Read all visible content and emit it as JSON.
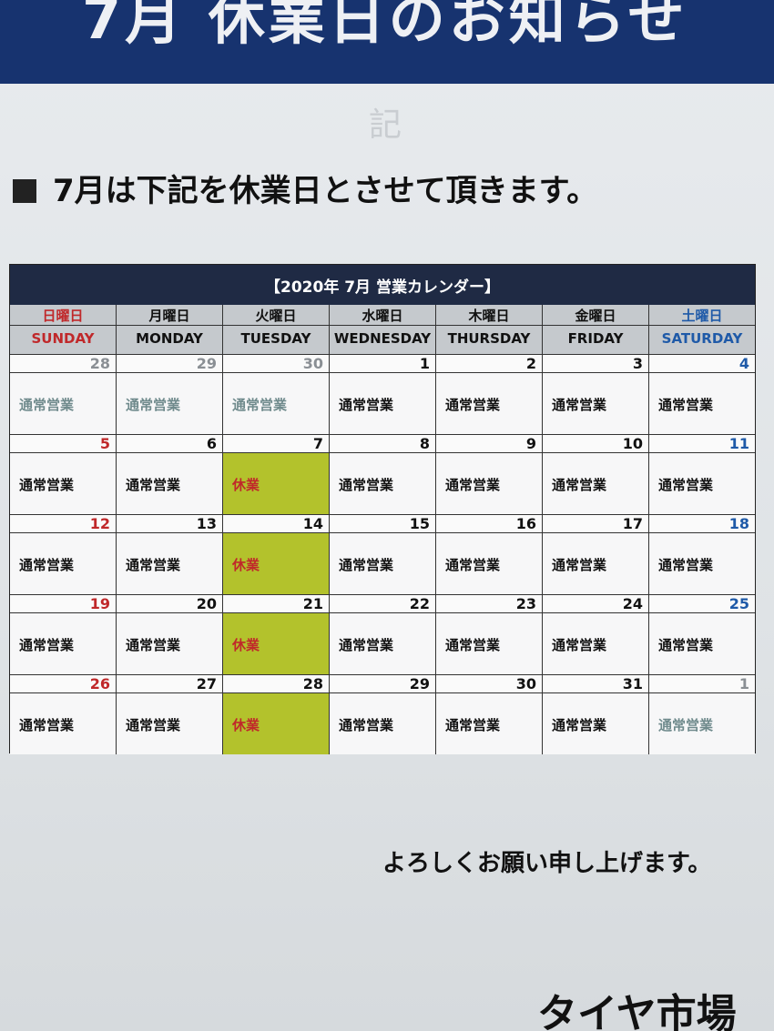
{
  "header": {
    "title": "7月 休業日のお知らせ",
    "mark": "記"
  },
  "notice": "7月は下記を休業日とさせて頂きます。",
  "calendar": {
    "title": "【2020年 7月 営業カレンダー】",
    "weekdays": [
      {
        "jp": "日曜日",
        "en": "SUNDAY",
        "color": "#c0282a"
      },
      {
        "jp": "月曜日",
        "en": "MONDAY",
        "color": "#111111"
      },
      {
        "jp": "火曜日",
        "en": "TUESDAY",
        "color": "#111111"
      },
      {
        "jp": "水曜日",
        "en": "WEDNESDAY",
        "color": "#111111"
      },
      {
        "jp": "木曜日",
        "en": "THURSDAY",
        "color": "#111111"
      },
      {
        "jp": "金曜日",
        "en": "FRIDAY",
        "color": "#111111"
      },
      {
        "jp": "土曜日",
        "en": "SATURDAY",
        "color": "#1f5aa8"
      }
    ],
    "weeks": [
      [
        {
          "day": "28",
          "status": "通常営業"
        },
        {
          "day": "29",
          "status": "通常営業"
        },
        {
          "day": "30",
          "status": "通常営業"
        },
        {
          "day": "1",
          "status": "通常営業"
        },
        {
          "day": "2",
          "status": "通常営業"
        },
        {
          "day": "3",
          "status": "通常営業"
        },
        {
          "day": "4",
          "status": "通常営業"
        }
      ],
      [
        {
          "day": "5",
          "status": "通常営業"
        },
        {
          "day": "6",
          "status": "通常営業"
        },
        {
          "day": "7",
          "status": "休業",
          "color": "#b3c22c"
        },
        {
          "day": "8",
          "status": "通常営業"
        },
        {
          "day": "9",
          "status": "通常営業"
        },
        {
          "day": "10",
          "status": "通常営業"
        },
        {
          "day": "11",
          "status": "通常営業"
        }
      ],
      [
        {
          "day": "12",
          "status": "通常営業"
        },
        {
          "day": "13",
          "status": "通常営業"
        },
        {
          "day": "14",
          "status": "休業",
          "color": "#b3c22c"
        },
        {
          "day": "15",
          "status": "通常営業"
        },
        {
          "day": "16",
          "status": "通常営業"
        },
        {
          "day": "17",
          "status": "通常営業"
        },
        {
          "day": "18",
          "status": "通常営業"
        }
      ],
      [
        {
          "day": "19",
          "status": "通常営業"
        },
        {
          "day": "20",
          "status": "通常営業"
        },
        {
          "day": "21",
          "status": "休業",
          "color": "#b3c22c"
        },
        {
          "day": "22",
          "status": "通常営業"
        },
        {
          "day": "23",
          "status": "通常営業"
        },
        {
          "day": "24",
          "status": "通常営業"
        },
        {
          "day": "25",
          "status": "通常営業"
        }
      ],
      [
        {
          "day": "26",
          "status": "通常営業"
        },
        {
          "day": "27",
          "status": "通常営業"
        },
        {
          "day": "28",
          "status": "休業",
          "color": "#b3c22c"
        },
        {
          "day": "29",
          "status": "通常営業"
        },
        {
          "day": "30",
          "status": "通常営業"
        },
        {
          "day": "31",
          "status": "通常営業"
        },
        {
          "day": "1",
          "status": "通常営業"
        }
      ]
    ]
  },
  "footer": "よろしくお願い申し上げます。",
  "brand": "タイヤ市場"
}
